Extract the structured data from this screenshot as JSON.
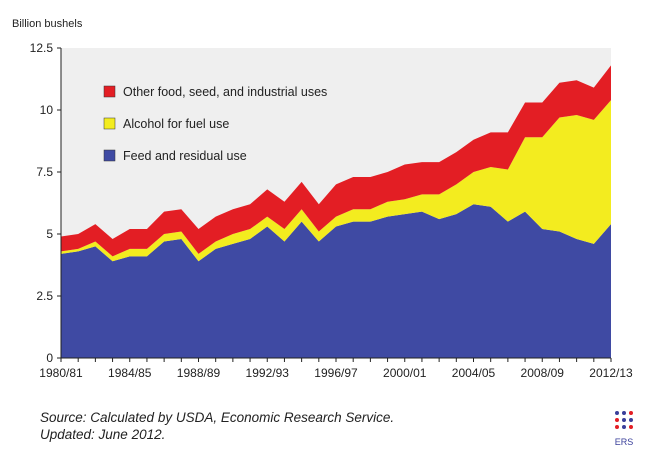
{
  "chart_data": {
    "type": "area",
    "stacked": true,
    "ylabel": "Billion bushels",
    "ylim": [
      0,
      12.5
    ],
    "yticks": [
      "0",
      "2.5",
      "5",
      "7.5",
      "10",
      "12.5"
    ],
    "xtick_labels": [
      "1980/81",
      "1984/85",
      "1988/89",
      "1992/93",
      "1996/97",
      "2000/01",
      "2004/05",
      "2008/09",
      "2012/13"
    ],
    "categories": [
      "1980/81",
      "1981/82",
      "1982/83",
      "1983/84",
      "1984/85",
      "1985/86",
      "1986/87",
      "1987/88",
      "1988/89",
      "1989/90",
      "1990/91",
      "1991/92",
      "1992/93",
      "1993/94",
      "1994/95",
      "1995/96",
      "1996/97",
      "1997/98",
      "1998/99",
      "1999/00",
      "2000/01",
      "2001/02",
      "2002/03",
      "2003/04",
      "2004/05",
      "2005/06",
      "2006/07",
      "2007/08",
      "2008/09",
      "2009/10",
      "2010/11",
      "2011/12",
      "2012/13"
    ],
    "series": [
      {
        "name": "Feed and residual use",
        "color": "#3f4aa3",
        "values": [
          4.2,
          4.3,
          4.5,
          3.9,
          4.1,
          4.1,
          4.7,
          4.8,
          3.9,
          4.4,
          4.6,
          4.8,
          5.3,
          4.7,
          5.5,
          4.7,
          5.3,
          5.5,
          5.5,
          5.7,
          5.8,
          5.9,
          5.6,
          5.8,
          6.2,
          6.1,
          5.5,
          5.9,
          5.2,
          5.1,
          4.8,
          4.6,
          5.4
        ]
      },
      {
        "name": "Alcohol for fuel use",
        "color": "#f3ec1f",
        "values": [
          0.1,
          0.1,
          0.2,
          0.2,
          0.3,
          0.3,
          0.3,
          0.3,
          0.3,
          0.3,
          0.4,
          0.4,
          0.4,
          0.5,
          0.5,
          0.4,
          0.4,
          0.5,
          0.5,
          0.6,
          0.6,
          0.7,
          1.0,
          1.2,
          1.3,
          1.6,
          2.1,
          3.0,
          3.7,
          4.6,
          5.0,
          5.0,
          5.0
        ]
      },
      {
        "name": "Other food, seed, and industrial uses",
        "color": "#e31e24",
        "values": [
          0.6,
          0.6,
          0.7,
          0.7,
          0.8,
          0.8,
          0.9,
          0.9,
          1.0,
          1.0,
          1.0,
          1.0,
          1.1,
          1.1,
          1.1,
          1.1,
          1.3,
          1.3,
          1.3,
          1.2,
          1.4,
          1.3,
          1.3,
          1.3,
          1.3,
          1.4,
          1.5,
          1.4,
          1.4,
          1.4,
          1.4,
          1.3,
          1.4
        ]
      }
    ],
    "legend_order": [
      "Other food, seed, and industrial uses",
      "Alcohol for fuel use",
      "Feed and residual use"
    ],
    "legend_position": "top-left",
    "grid": false,
    "background": "#efefef"
  },
  "source_line1": "Source: Calculated by USDA, Economic Research Service.",
  "source_line2": "Updated: June 2012.",
  "logo_text": "ERS"
}
